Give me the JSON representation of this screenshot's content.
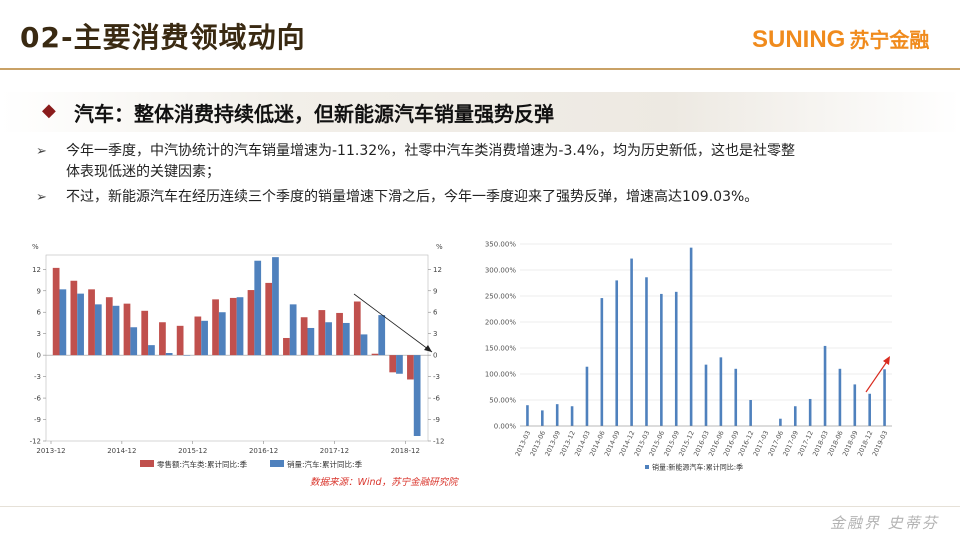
{
  "header": {
    "title": "02-主要消费领域动向",
    "logo_en": "SUNING",
    "logo_cn": "苏宁金融"
  },
  "subheading": "汽车：整体消费持续低迷，但新能源汽车销量强势反弹",
  "bullets": [
    {
      "line1": "今年一季度，中汽协统计的汽车销量增速为-11.32%，社零中汽车类消费增速为-3.4%，均为历史新低，这也是社零整",
      "line2": "体表现低迷的关键因素；"
    },
    {
      "line1": "不过，新能源汽车在经历连续三个季度的销量增速下滑之后，今年一季度迎来了强势反弹，增速高达109.03%。",
      "line2": ""
    }
  ],
  "source_note": "数据来源：Wind，苏宁金融研究院",
  "signature": "金融界 史蒂芬",
  "colors": {
    "retail": "#c0504d",
    "sales": "#4f81bd",
    "nev": "#4f81bd",
    "title_text": "#3a2a12",
    "brand": "#f08b1d",
    "rule": "#c9a166",
    "trend_down": "#222222",
    "trend_up": "#d92b1f"
  },
  "chart_data": [
    {
      "type": "bar",
      "ylabel_left": "%",
      "ylabel_right": "%",
      "ylim": [
        -12,
        14
      ],
      "yticks": [
        -12,
        -9,
        -6,
        -3,
        0,
        3,
        6,
        9,
        12
      ],
      "x_tick_labels": [
        "2013-12",
        "2014-12",
        "2015-12",
        "2016-12",
        "2017-12",
        "2018-12"
      ],
      "series": [
        {
          "name": "零售额:汽车类:累计同比:季",
          "values": [
            12.2,
            10.4,
            9.2,
            8.1,
            7.2,
            6.2,
            4.6,
            4.1,
            5.4,
            7.8,
            8.0,
            9.1,
            10.1,
            2.4,
            5.3,
            6.3,
            5.9,
            7.5,
            0.2,
            -2.4,
            -3.4
          ]
        },
        {
          "name": "销量:汽车:累计同比:季",
          "values": [
            9.2,
            8.6,
            7.1,
            6.9,
            3.9,
            1.4,
            0.3,
            0.0,
            4.8,
            6.0,
            8.1,
            13.2,
            13.7,
            7.1,
            3.8,
            4.6,
            4.5,
            2.9,
            5.6,
            -2.6,
            -11.3
          ]
        }
      ],
      "annotation": "downward trend arrow"
    },
    {
      "type": "bar",
      "ylim": [
        0,
        350
      ],
      "ytick_labels": [
        "0.00%",
        "50.00%",
        "100.00%",
        "150.00%",
        "200.00%",
        "250.00%",
        "300.00%",
        "350.00%"
      ],
      "categories": [
        "2013-03",
        "2013-06",
        "2013-09",
        "2013-12",
        "2014-03",
        "2014-06",
        "2014-09",
        "2014-12",
        "2015-03",
        "2015-06",
        "2015-09",
        "2015-12",
        "2016-03",
        "2016-06",
        "2016-09",
        "2016-12",
        "2017-03",
        "2017-06",
        "2017-09",
        "2017-12",
        "2018-03",
        "2018-06",
        "2018-09",
        "2018-12",
        "2019-03"
      ],
      "x_tick_labels": [
        "2013-03",
        "2013-06",
        "2013-09",
        "2013-12",
        "2014-03",
        "2014-06",
        "2014-09",
        "2014-12",
        "2015-03",
        "2015-06",
        "2015-09",
        "2015-12",
        "2016-03",
        "2016-06",
        "2016-09",
        "2016-12",
        "2017-03",
        "2017-06",
        "2017-09",
        "2017-12",
        "2018-03",
        "2018-06",
        "2018-09",
        "2018-12",
        "2019-03"
      ],
      "series": [
        {
          "name": "销量:新能源汽车:累计同比:季",
          "values": [
            40,
            30,
            42,
            38,
            114,
            246,
            280,
            322,
            286,
            254,
            258,
            343,
            118,
            132,
            110,
            50,
            0,
            14,
            38,
            52,
            154,
            110,
            80,
            62,
            109.03
          ]
        }
      ],
      "annotation": "upward trend arrow"
    }
  ]
}
